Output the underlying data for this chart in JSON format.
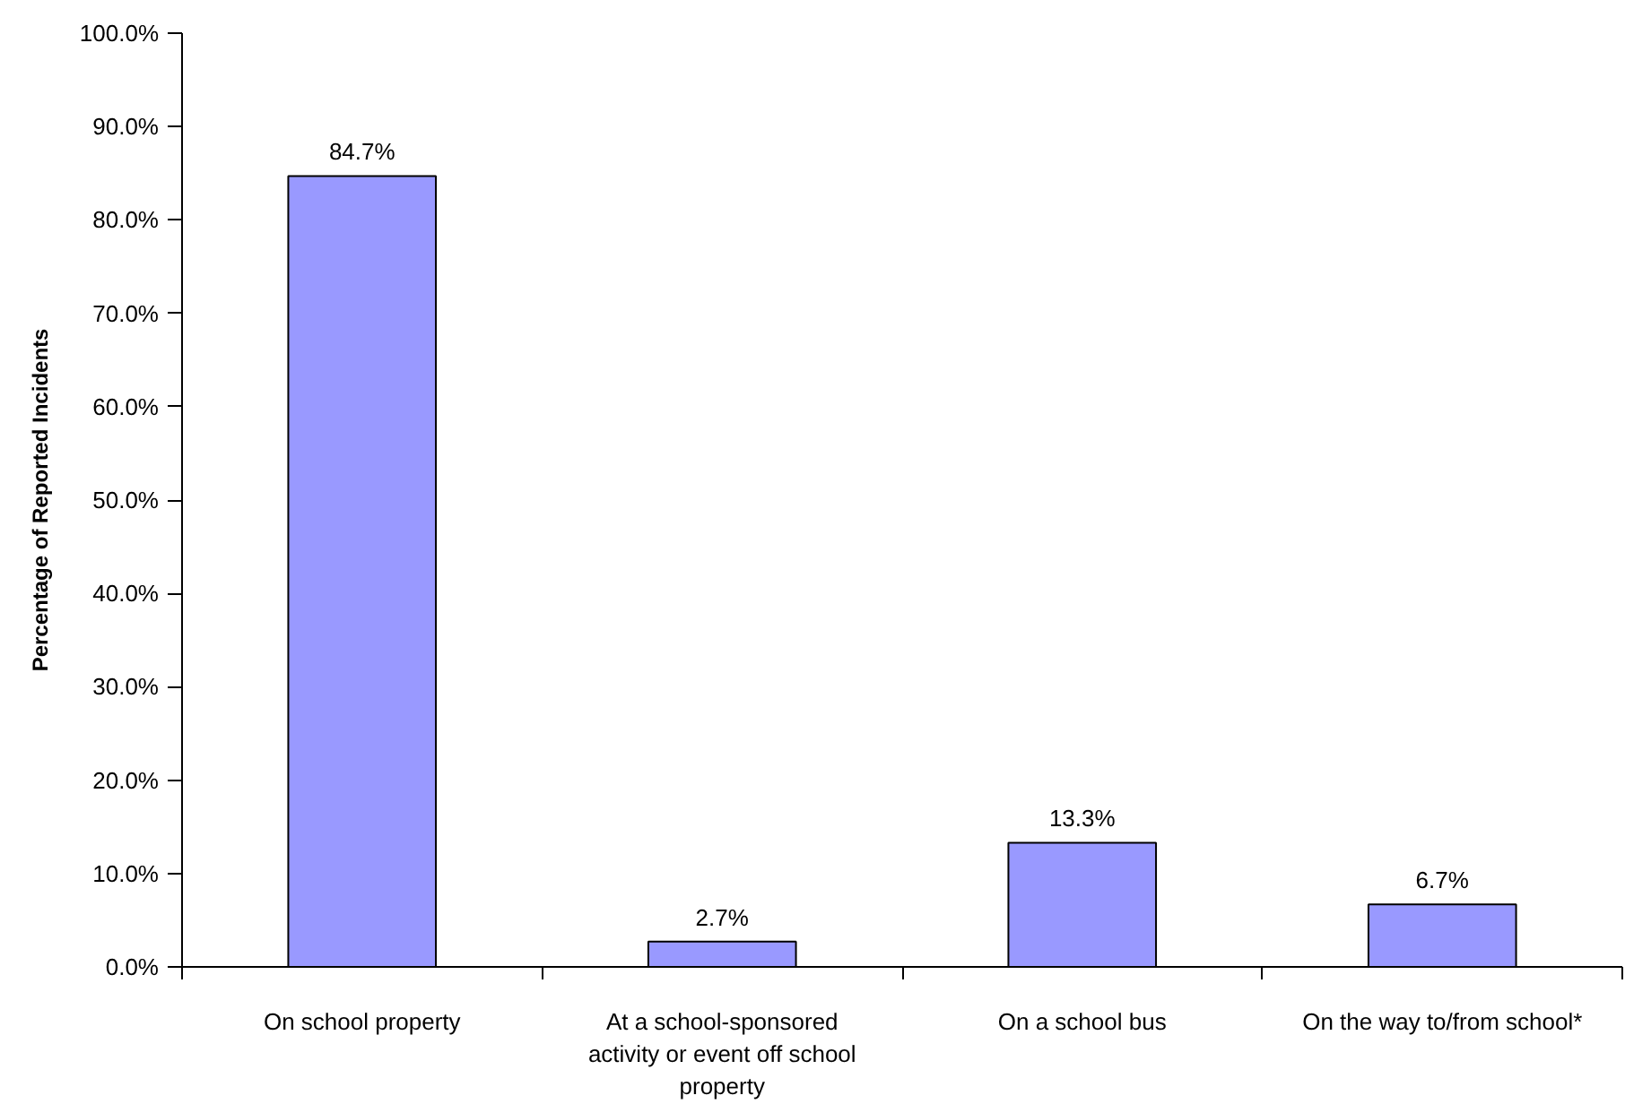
{
  "chart_data": {
    "type": "bar",
    "categories": [
      "On school property",
      "At a school-sponsored activity or event off school property",
      "On a school bus",
      "On the way to/from school*"
    ],
    "values": [
      84.7,
      2.7,
      13.3,
      6.7
    ],
    "color": "#9999ff",
    "value_labels": [
      "84.7%",
      "2.7%",
      "13.3%",
      "6.7%"
    ],
    "ylabel": "Percentage of Reported Incidents",
    "ylim": [
      0,
      100
    ],
    "yticks": [
      {
        "value": 0,
        "label": "0.0%"
      },
      {
        "value": 10,
        "label": "10.0%"
      },
      {
        "value": 20,
        "label": "20.0%"
      },
      {
        "value": 30,
        "label": "30.0%"
      },
      {
        "value": 40,
        "label": "40.0%"
      },
      {
        "value": 50,
        "label": "50.0%"
      },
      {
        "value": 60,
        "label": "60.0%"
      },
      {
        "value": 70,
        "label": "70.0%"
      },
      {
        "value": 80,
        "label": "80.0%"
      },
      {
        "value": 90,
        "label": "90.0%"
      },
      {
        "value": 100,
        "label": "100.0%"
      }
    ]
  }
}
